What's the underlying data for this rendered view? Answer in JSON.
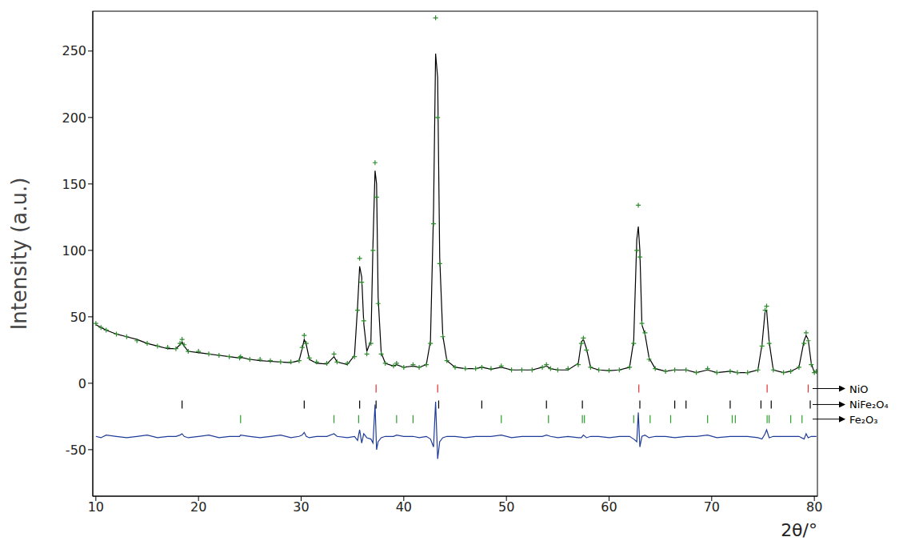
{
  "chart_data": {
    "type": "scatter",
    "y_label": "Intensity (a.u.)",
    "x_label": "2θ/°",
    "xlim": [
      9.7,
      80.3
    ],
    "xticks": [
      10,
      20,
      30,
      40,
      50,
      60,
      70,
      80
    ],
    "ylim": [
      -85,
      280
    ],
    "yticks": [
      -50,
      0,
      50,
      100,
      150,
      200,
      250
    ],
    "x": [
      10,
      10.5,
      11,
      12,
      13,
      14,
      15,
      16,
      17,
      17.8,
      18.2,
      18.4,
      18.6,
      19,
      20,
      21,
      22,
      23,
      24,
      24.1,
      25,
      26,
      27,
      28,
      29,
      29.8,
      30.1,
      30.3,
      30.5,
      30.8,
      31.5,
      32.5,
      33.2,
      33.5,
      34.5,
      35.2,
      35.5,
      35.7,
      35.9,
      36.1,
      36.4,
      36.8,
      37.0,
      37.2,
      37.35,
      37.5,
      37.8,
      38.2,
      39,
      39.3,
      40,
      40.9,
      41.5,
      42.2,
      42.6,
      42.9,
      43.1,
      43.3,
      43.5,
      43.8,
      44.2,
      45,
      46,
      47,
      47.6,
      48.5,
      49.5,
      50.5,
      51.5,
      52.5,
      53.5,
      53.9,
      54.3,
      55,
      56,
      57,
      57.3,
      57.5,
      57.8,
      58.2,
      59,
      60,
      61,
      62,
      62.4,
      62.7,
      62.85,
      63.0,
      63.2,
      63.5,
      63.9,
      64.5,
      65.5,
      66.4,
      67.5,
      68.5,
      69.6,
      70.5,
      71.8,
      72.5,
      73.5,
      74.5,
      74.9,
      75.2,
      75.35,
      75.6,
      76,
      77,
      77.7,
      78.5,
      79.0,
      79.2,
      79.4,
      79.7,
      80.0,
      80.2
    ],
    "series": [
      {
        "type": "scatter",
        "color": "#2e8b2e",
        "marker": "plus",
        "values": [
          45,
          42,
          40,
          37,
          35,
          32,
          30,
          28,
          27,
          26,
          30,
          33,
          29,
          24,
          24,
          22,
          21,
          20,
          19,
          20,
          18,
          18,
          17,
          16,
          16,
          17,
          27,
          36,
          30,
          19,
          16,
          15,
          22,
          16,
          15,
          20,
          55,
          94,
          76,
          47,
          22,
          30,
          100,
          166,
          140,
          60,
          22,
          15,
          13,
          15,
          12,
          14,
          12,
          14,
          30,
          120,
          275,
          200,
          90,
          35,
          17,
          12,
          11,
          11,
          12,
          11,
          13,
          10,
          10,
          10,
          12,
          14,
          11,
          10,
          11,
          14,
          30,
          34,
          25,
          12,
          10,
          9.5,
          10,
          12,
          30,
          100,
          134,
          95,
          45,
          38,
          18,
          11,
          9,
          10,
          10,
          8,
          11,
          8,
          9,
          8,
          8,
          10,
          28,
          55,
          58,
          30,
          10,
          8,
          9,
          12,
          30,
          38,
          32,
          14,
          8,
          9
        ]
      },
      {
        "type": "line",
        "color": "#000000",
        "line_style": "solid",
        "values": [
          44,
          42,
          40,
          37,
          35,
          33,
          30,
          28,
          26,
          26,
          29,
          31,
          28,
          24,
          23,
          22,
          21,
          20,
          19,
          19.5,
          18,
          17,
          16.5,
          16,
          15.5,
          17,
          26,
          33,
          29,
          18,
          15,
          14.5,
          20,
          16,
          14,
          21,
          58,
          88,
          80,
          45,
          24,
          32,
          105,
          160,
          150,
          65,
          23,
          15,
          13,
          14,
          12,
          13,
          12,
          14,
          32,
          130,
          248,
          230,
          95,
          36,
          17,
          12,
          11,
          11,
          12,
          10.5,
          12,
          10,
          10,
          10,
          12,
          13,
          11,
          10,
          10,
          15,
          31,
          33,
          26,
          12,
          10,
          9.5,
          10,
          12,
          32,
          108,
          118,
          100,
          44,
          37,
          19,
          11,
          9,
          10,
          10,
          8,
          10,
          8,
          9,
          8,
          8,
          10,
          29,
          54,
          55,
          31,
          10,
          8,
          9,
          12,
          32,
          36,
          33,
          15,
          8,
          8.5
        ]
      },
      {
        "type": "line",
        "color": "#1f3c99",
        "line_style": "solid",
        "values": [
          -40,
          -41,
          -39,
          -40,
          -41,
          -40,
          -39,
          -41,
          -40,
          -40,
          -39,
          -38,
          -40,
          -41,
          -40,
          -39,
          -41,
          -40,
          -40,
          -39,
          -40,
          -41,
          -40,
          -39,
          -41,
          -40,
          -39,
          -37,
          -40,
          -41,
          -40,
          -40,
          -38,
          -40,
          -41,
          -40,
          -43,
          -35,
          -45,
          -38,
          -41,
          -42,
          -45,
          -16,
          -50,
          -44,
          -41,
          -40,
          -40,
          -39,
          -40,
          -40,
          -41,
          -40,
          -42,
          -48,
          -14,
          -57,
          -44,
          -41,
          -40,
          -40,
          -41,
          -40,
          -40,
          -40,
          -39,
          -41,
          -40,
          -40,
          -40,
          -39,
          -40,
          -41,
          -40,
          -41,
          -41,
          -39,
          -41,
          -40,
          -40,
          -41,
          -40,
          -40,
          -42,
          -44,
          -22,
          -48,
          -40,
          -39,
          -41,
          -40,
          -40,
          -41,
          -40,
          -40,
          -39,
          -41,
          -40,
          -40,
          -40,
          -41,
          -42,
          -38,
          -35,
          -41,
          -40,
          -40,
          -40,
          -40,
          -42,
          -38,
          -41,
          -40,
          -40,
          -40
        ]
      }
    ],
    "phases": [
      {
        "name": "NiO",
        "color": "#e03030",
        "offset": -4,
        "positions": [
          37.3,
          43.3,
          62.9,
          75.4,
          79.4
        ]
      },
      {
        "name": "NiFe₂O₄",
        "color": "#000000",
        "offset": -16,
        "positions": [
          18.4,
          30.3,
          35.7,
          37.3,
          43.4,
          47.6,
          53.9,
          57.4,
          63.0,
          66.4,
          67.5,
          71.8,
          74.8,
          75.8,
          79.6
        ]
      },
      {
        "name": "Fe₂O₃",
        "color": "#2aa02a",
        "offset": -27,
        "positions": [
          24.1,
          33.2,
          35.6,
          39.3,
          40.9,
          49.5,
          54.1,
          57.4,
          57.6,
          62.4,
          64.0,
          66.0,
          69.6,
          72.0,
          72.3,
          75.4,
          75.6,
          77.7,
          78.8
        ]
      }
    ]
  }
}
